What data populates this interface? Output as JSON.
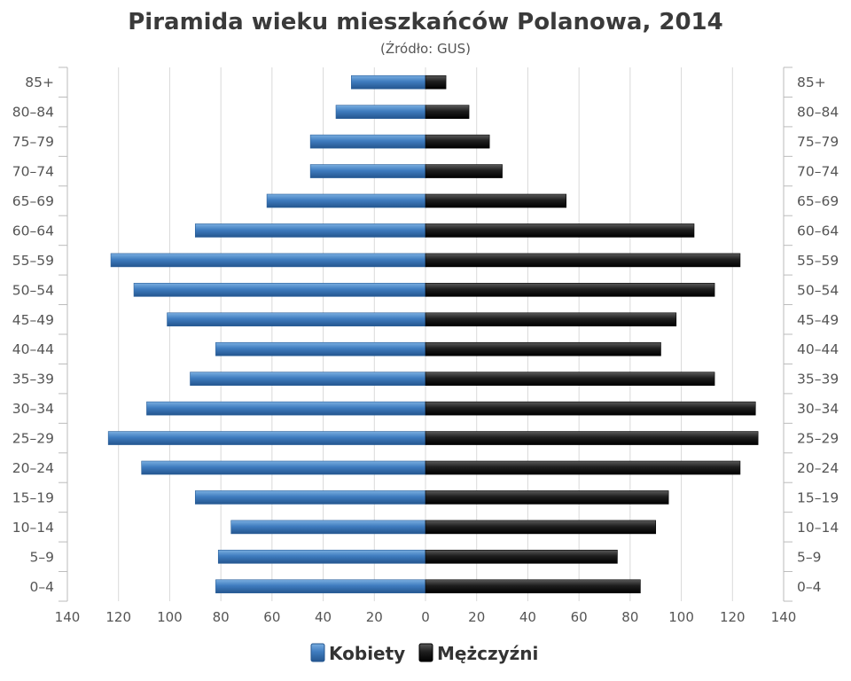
{
  "chart_data": {
    "type": "bar",
    "orientation": "horizontal",
    "layout": "population-pyramid",
    "title": "Piramida wieku mieszkańców Polanowa, 2014",
    "subtitle": "(Źródło: GUS)",
    "categories": [
      "0-4",
      "5-9",
      "10-14",
      "15-19",
      "20-24",
      "25-29",
      "30-34",
      "35-39",
      "40-44",
      "45-49",
      "50-54",
      "55-59",
      "60-64",
      "65-69",
      "70-74",
      "75-79",
      "80-84",
      "85+"
    ],
    "series": [
      {
        "name": "Kobiety",
        "side": "left",
        "color": "#3f7cbf",
        "values": [
          82,
          81,
          76,
          90,
          111,
          124,
          109,
          92,
          82,
          101,
          114,
          123,
          90,
          62,
          45,
          45,
          35,
          29
        ]
      },
      {
        "name": "Mężczyźni",
        "side": "right",
        "color": "#1a1a1a",
        "values": [
          84,
          75,
          90,
          95,
          123,
          130,
          129,
          113,
          92,
          98,
          113,
          123,
          105,
          55,
          30,
          25,
          17,
          8
        ]
      }
    ],
    "xlim": [
      -140,
      140
    ],
    "x_ticks": [
      -140,
      -120,
      -100,
      -80,
      -60,
      -40,
      -20,
      0,
      20,
      40,
      60,
      80,
      100,
      120,
      140
    ],
    "x_tick_labels": [
      "140",
      "120",
      "100",
      "80",
      "60",
      "40",
      "20",
      "0",
      "20",
      "40",
      "60",
      "80",
      "100",
      "120",
      "140"
    ],
    "grid": true,
    "legend_position": "bottom-center"
  }
}
